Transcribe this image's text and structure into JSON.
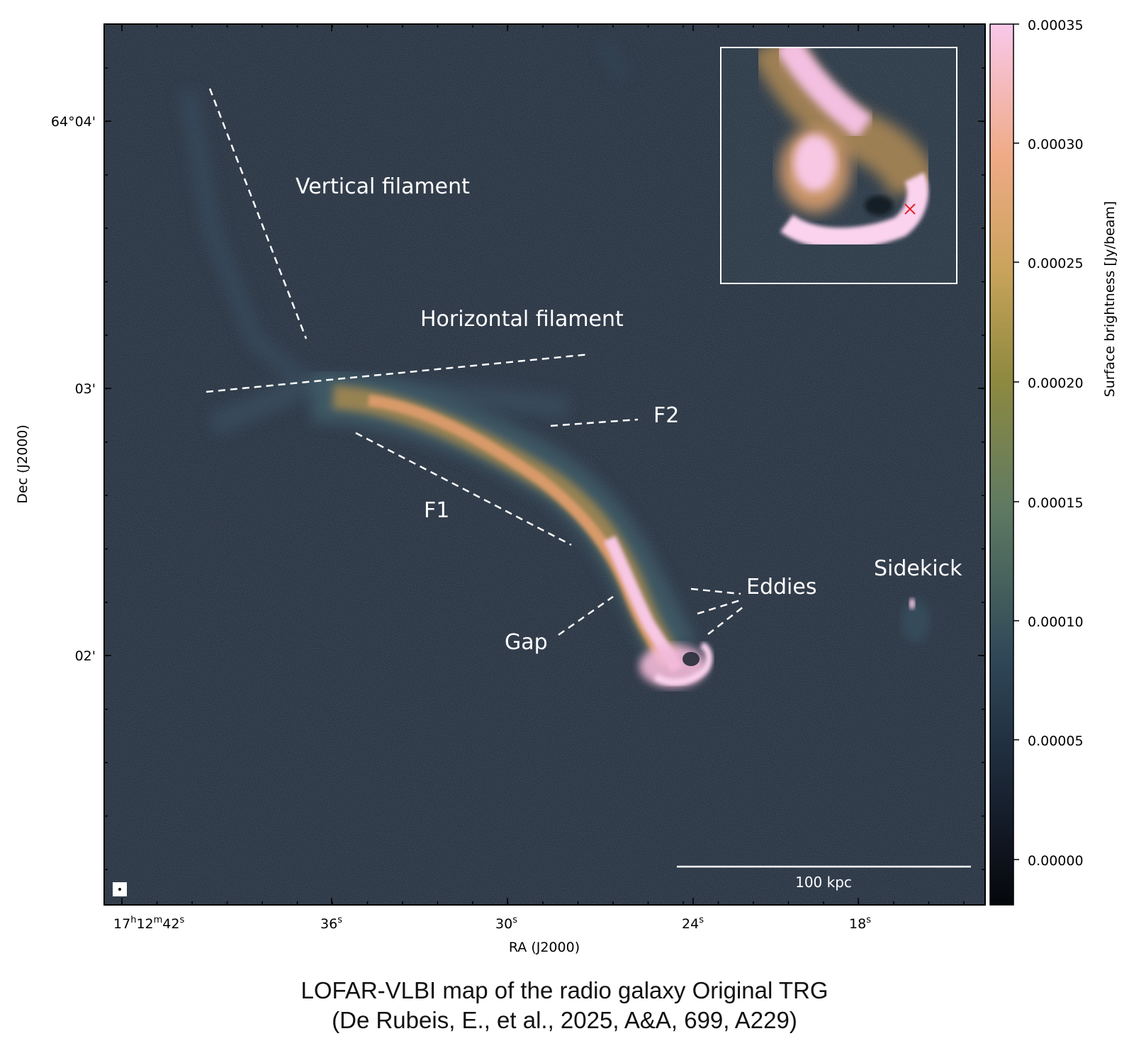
{
  "figure": {
    "x_axis_label": "RA (J2000)",
    "y_axis_label": "Dec (J2000)",
    "x_ticks": [
      {
        "main": "17",
        "sup1": "h",
        "mid": "12",
        "sup2": "m",
        "end": "42",
        "sup3": "s"
      },
      {
        "main": "36",
        "sup3": "s"
      },
      {
        "main": "30",
        "sup3": "s"
      },
      {
        "main": "24",
        "sup3": "s"
      },
      {
        "main": "18",
        "sup3": "s"
      }
    ],
    "y_ticks": [
      "64°04'",
      "03'",
      "02'"
    ],
    "colorbar": {
      "label": "Surface brightness [Jy/beam]",
      "ticks": [
        "0.00035",
        "0.00030",
        "0.00025",
        "0.00020",
        "0.00015",
        "0.00010",
        "0.00005",
        "0.00000"
      ]
    },
    "annotations": {
      "vertical_filament": "Vertical filament",
      "horizontal_filament": "Horizontal filament",
      "f2": "F2",
      "f1": "F1",
      "eddies": "Eddies",
      "gap": "Gap",
      "sidekick": "Sidekick"
    },
    "scale_bar_label": "100 kpc",
    "colors": {
      "background_map": "#1b2430",
      "annotation": "#ffffff",
      "emission_peak": "#f7c7e4",
      "emission_mid": "#d79a5e",
      "core_marker": "#e8232b"
    }
  },
  "caption": {
    "line1": "LOFAR-VLBI map of the radio galaxy Original TRG",
    "line2": "(De Rubeis, E., et al., 2025, A&A, 699, A229)"
  }
}
